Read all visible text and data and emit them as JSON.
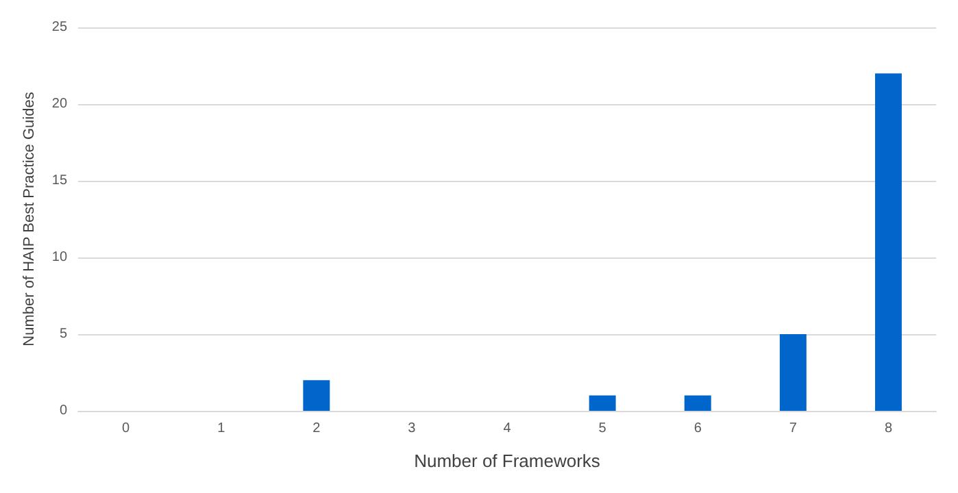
{
  "chart_data": {
    "type": "bar",
    "xlabel": "Number of Frameworks",
    "ylabel": "Number of HAIP Best Practice Guides",
    "categories": [
      "0",
      "1",
      "2",
      "3",
      "4",
      "5",
      "6",
      "7",
      "8"
    ],
    "values": [
      0,
      0,
      2,
      0,
      0,
      1,
      1,
      5,
      22
    ],
    "color": "#0066cc",
    "ylim": [
      0,
      25
    ],
    "yticks": [
      0,
      5,
      10,
      15,
      20,
      25
    ],
    "grid": "y"
  }
}
